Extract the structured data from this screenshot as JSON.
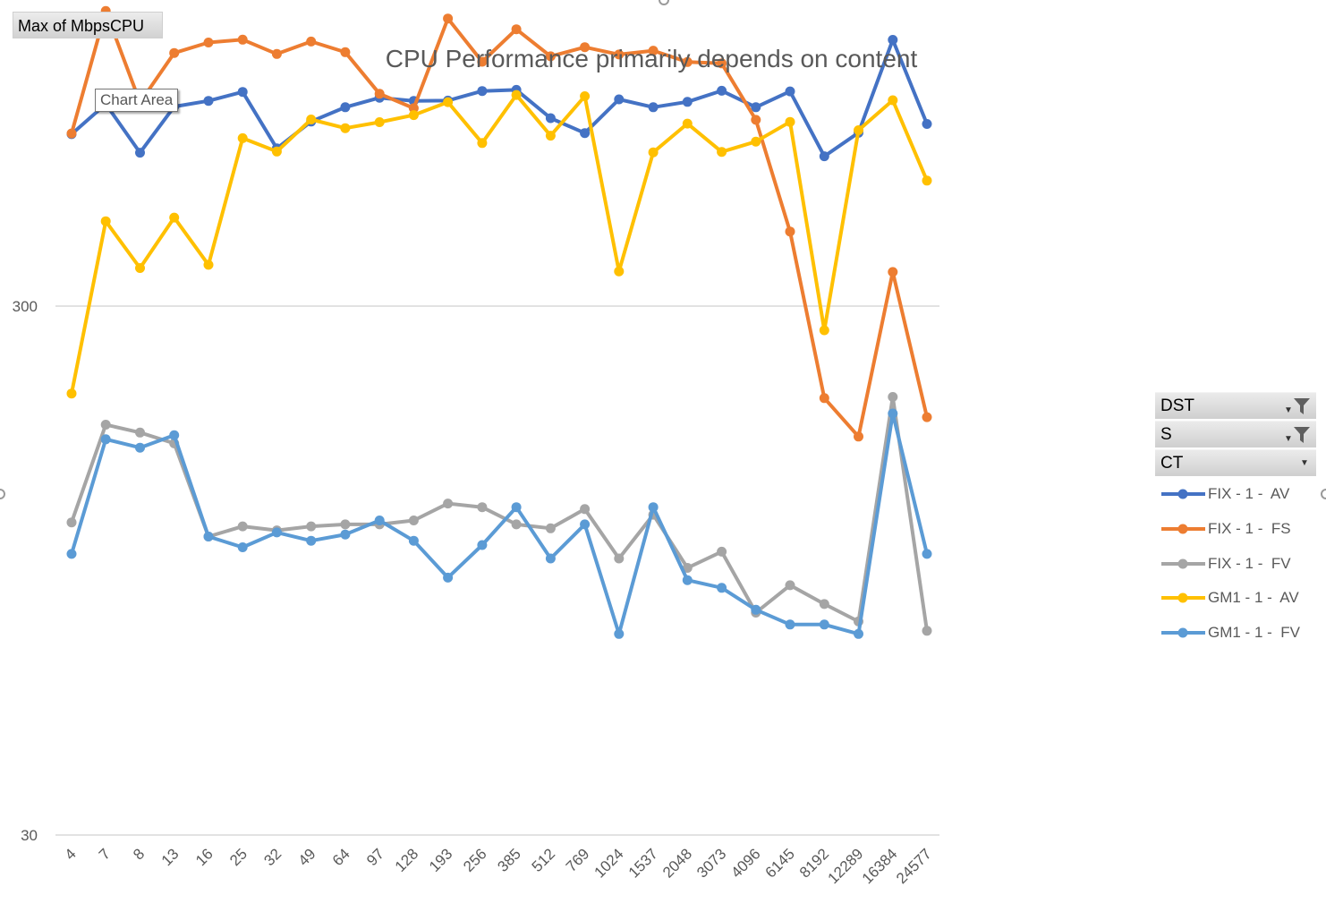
{
  "field_button": {
    "label": "Max of  MbpsCPU"
  },
  "tooltip": {
    "label": "Chart Area"
  },
  "filters": [
    {
      "label": "DST",
      "filtered": true
    },
    {
      "label": "S",
      "filtered": true
    },
    {
      "label": "CT",
      "filtered": false
    }
  ],
  "chart_data": {
    "type": "line",
    "title": "CPU Performance primarily depends on content",
    "xlabel": "",
    "ylabel": "",
    "y_scale": "log",
    "ylim": [
      30,
      1100
    ],
    "y_ticks": [
      30,
      300
    ],
    "y_tick_labels": [
      "30",
      "300"
    ],
    "gridlines": true,
    "legend_position": "right",
    "categories": [
      "4",
      "7",
      "8",
      "13",
      "16",
      "25",
      "32",
      "49",
      "64",
      "97",
      "128",
      "193",
      "256",
      "385",
      "512",
      "769",
      "1024",
      "1537",
      "2048",
      "3073",
      "4096",
      "6145",
      "8192",
      "12289",
      "16384",
      "24577"
    ],
    "series": [
      {
        "name": "FIX - 1 -  AV",
        "color": "#4472C4",
        "values": [
          634,
          723,
          585,
          715,
          733,
          762,
          596,
          670,
          713,
          743,
          733,
          734,
          765,
          769,
          680,
          637,
          738,
          713,
          730,
          766,
          713,
          764,
          576,
          638,
          956,
          663
        ]
      },
      {
        "name": "FIX - 1 -  FS",
        "color": "#ED7D31",
        "values": [
          636,
          1084,
          728,
          903,
          945,
          957,
          899,
          949,
          906,
          756,
          710,
          1049,
          869,
          1001,
          890,
          926,
          897,
          912,
          868,
          863,
          675,
          415,
          201,
          170,
          348,
          185
        ]
      },
      {
        "name": "FIX - 1 -  FV",
        "color": "#A5A5A5",
        "values": [
          117,
          179,
          173,
          165,
          110,
          115,
          113,
          115,
          116,
          116,
          118,
          127,
          125,
          116,
          114,
          124,
          100,
          121,
          96,
          103,
          79,
          89,
          82,
          76,
          202,
          73
        ]
      },
      {
        "name": "GM1 - 1 -  AV",
        "color": "#FFC000",
        "values": [
          205,
          434,
          354,
          441,
          359,
          623,
          588,
          676,
          651,
          668,
          689,
          729,
          610,
          752,
          630,
          748,
          349,
          586,
          664,
          587,
          614,
          669,
          270,
          645,
          735,
          518
        ]
      },
      {
        "name": "GM1 - 1 -  FV",
        "color": "#5B9BD5",
        "values": [
          102,
          168,
          162,
          171,
          110,
          105,
          112,
          108,
          111,
          118,
          108,
          92,
          106,
          125,
          100,
          116,
          72,
          125,
          91,
          88,
          80,
          75,
          75,
          72,
          188,
          102
        ]
      }
    ]
  }
}
